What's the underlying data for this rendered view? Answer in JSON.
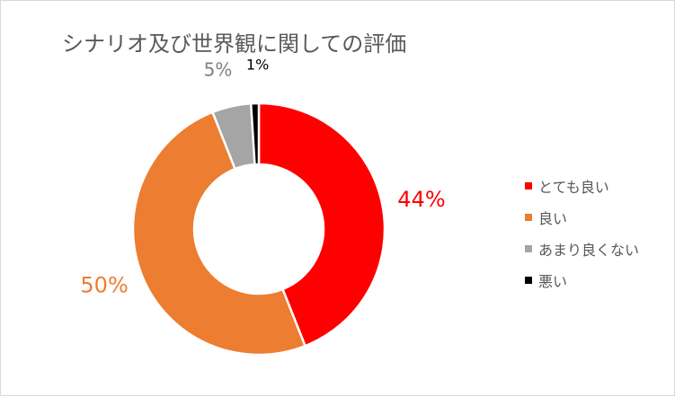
{
  "chart_data": {
    "type": "pie",
    "variant": "donut",
    "title": "シナリオ及び世界観に関しての評価",
    "categories": [
      "とても良い",
      "良い",
      "あまり良くない",
      "悪い"
    ],
    "values": [
      44,
      50,
      5,
      1
    ],
    "data_labels": [
      "44%",
      "50%",
      "5%",
      "1%"
    ],
    "colors": [
      "#ff0000",
      "#ed7d31",
      "#a5a5a5",
      "#000000"
    ],
    "label_colors": [
      "#ff0000",
      "#ed7d31",
      "#7f7f7f",
      "#000000"
    ],
    "legend_position": "right"
  }
}
